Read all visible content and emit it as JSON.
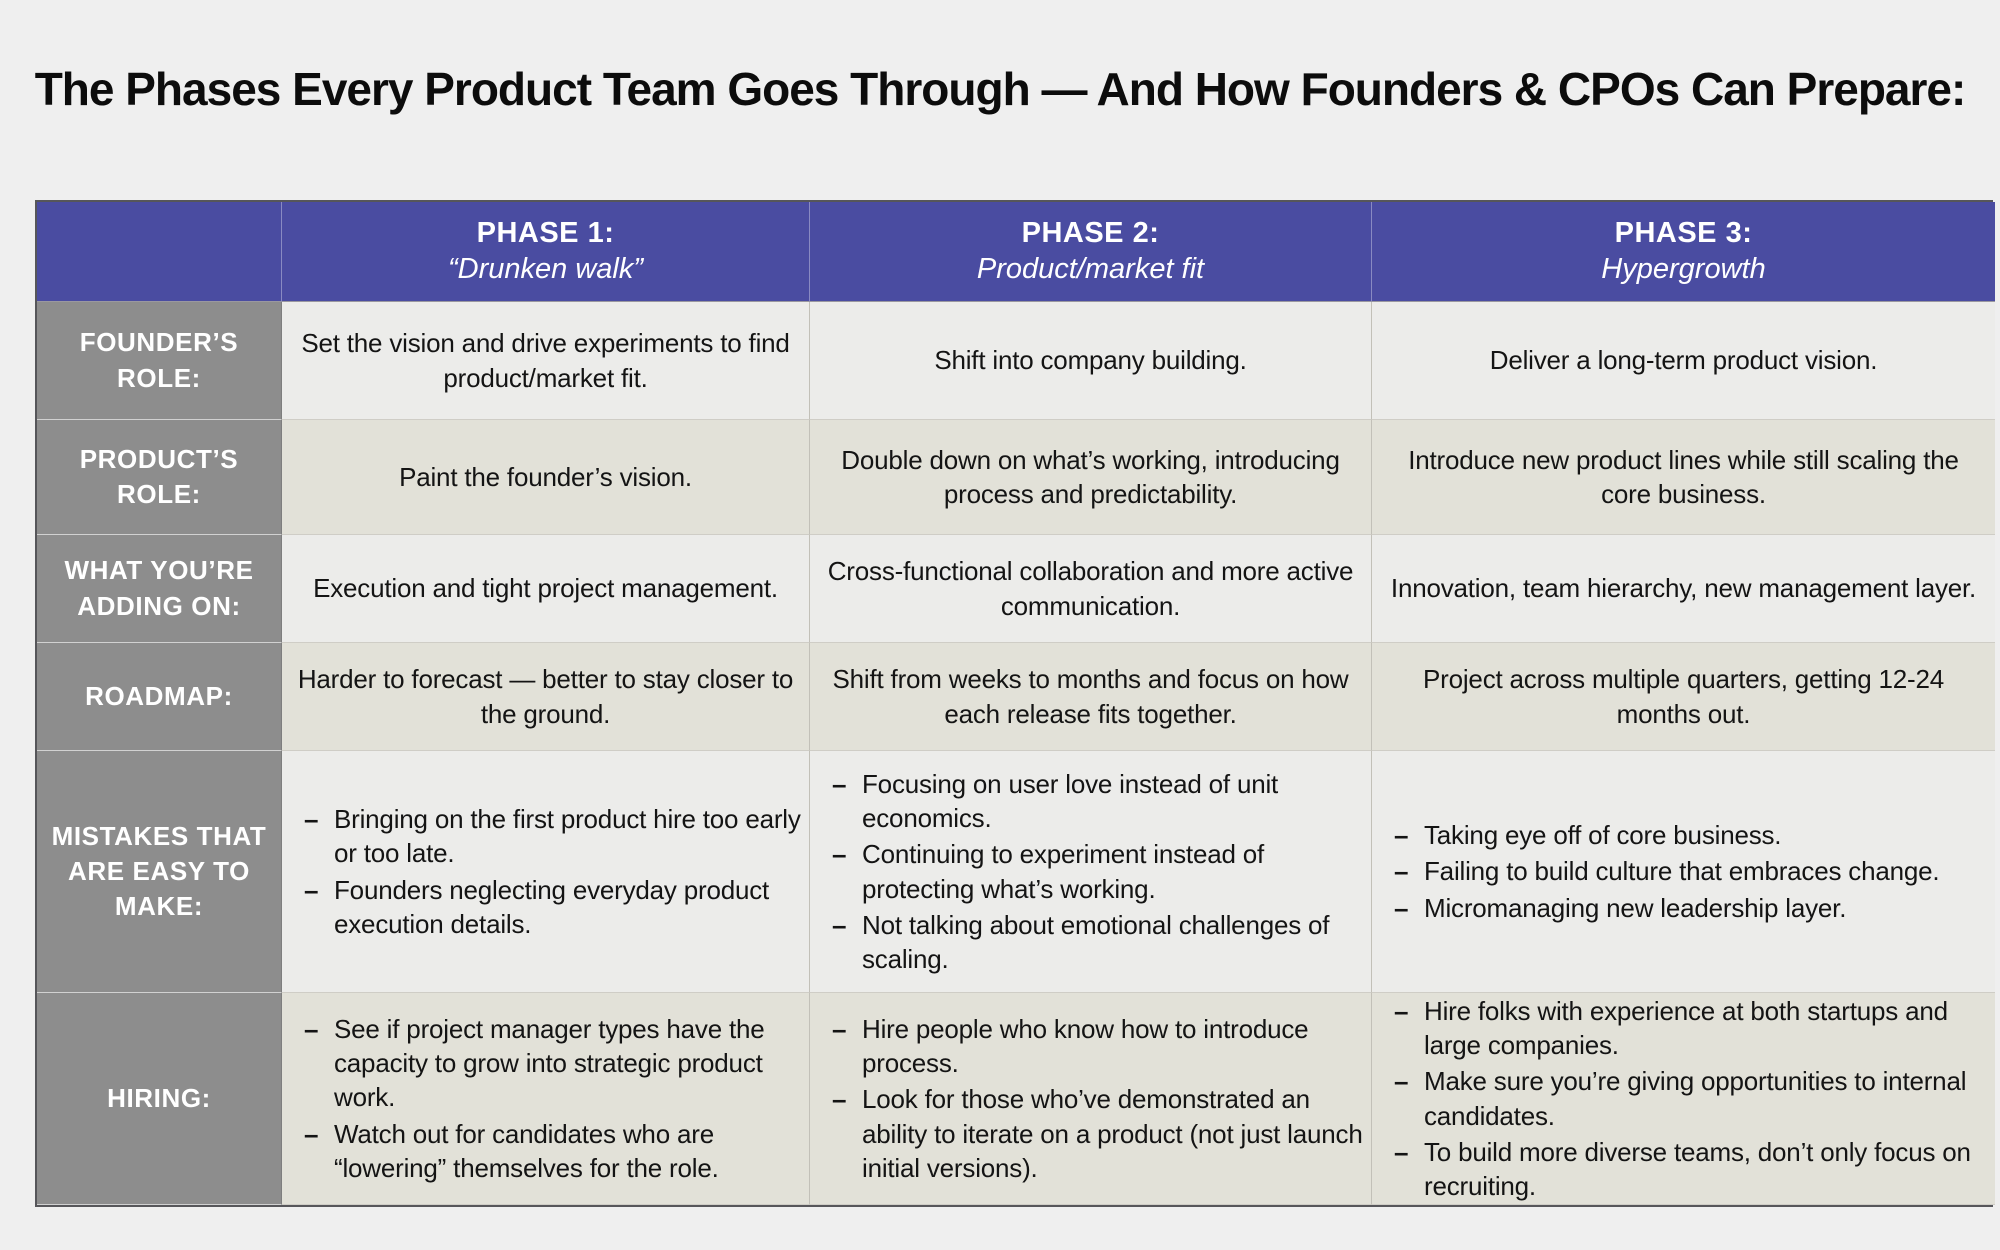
{
  "page": {
    "title": "The Phases Every Product Team Goes Through — And How Founders & CPOs Can Prepare:"
  },
  "colors": {
    "header_bg": "#4a4ca1",
    "label_bg": "#8d8d8d",
    "row_light": "#ececea",
    "row_dark": "#e2e1d8",
    "page_bg": "#efefef"
  },
  "table": {
    "columns": [
      {
        "title": "",
        "subtitle": ""
      },
      {
        "title": "PHASE 1:",
        "subtitle": "“Drunken walk”"
      },
      {
        "title": "PHASE 2:",
        "subtitle": "Product/market fit"
      },
      {
        "title": "PHASE 3:",
        "subtitle": "Hypergrowth"
      }
    ],
    "rows": [
      {
        "label": "FOUNDER’S ROLE:",
        "cells": [
          "Set the vision and drive experiments to find product/market fit.",
          "Shift into company building.",
          "Deliver a long-term product vision."
        ]
      },
      {
        "label": "PRODUCT’S ROLE:",
        "cells": [
          "Paint the founder’s vision.",
          "Double down on what’s working, introducing process and predictability.",
          "Introduce new product lines while still scaling the core business."
        ]
      },
      {
        "label": "WHAT YOU’RE ADDING ON:",
        "cells": [
          "Execution and tight project management.",
          "Cross-functional collaboration and more active communication.",
          "Innovation, team hierarchy, new management layer."
        ]
      },
      {
        "label": "ROADMAP:",
        "cells": [
          "Harder to forecast — better to stay closer to the ground.",
          "Shift from weeks to months and focus on how each release fits together.",
          "Project across multiple quarters, getting 12-24 months out."
        ]
      },
      {
        "label": "MISTAKES THAT ARE EASY TO MAKE:",
        "cells": [
          [
            "Bringing on the first product hire too early or too late.",
            "Founders neglecting everyday product execution details."
          ],
          [
            "Focusing on user love instead of unit economics.",
            "Continuing to experiment instead of protecting what’s working.",
            "Not talking about emotional challenges of scaling."
          ],
          [
            "Taking eye off of core business.",
            "Failing to build culture that embraces change.",
            "Micromanaging new leadership layer."
          ]
        ]
      },
      {
        "label": "HIRING:",
        "cells": [
          [
            "See if project manager types have the capacity to grow into strategic product work.",
            "Watch out for candidates who are “lowering” themselves for the role."
          ],
          [
            "Hire people who know how to introduce process.",
            "Look for those who’ve demonstrated an ability to iterate on a product (not just launch initial versions)."
          ],
          [
            "Hire folks with experience at both startups and large companies.",
            "Make sure you’re giving opportunities to internal candidates.",
            "To build more diverse teams, don’t only focus on recruiting."
          ]
        ]
      }
    ]
  }
}
